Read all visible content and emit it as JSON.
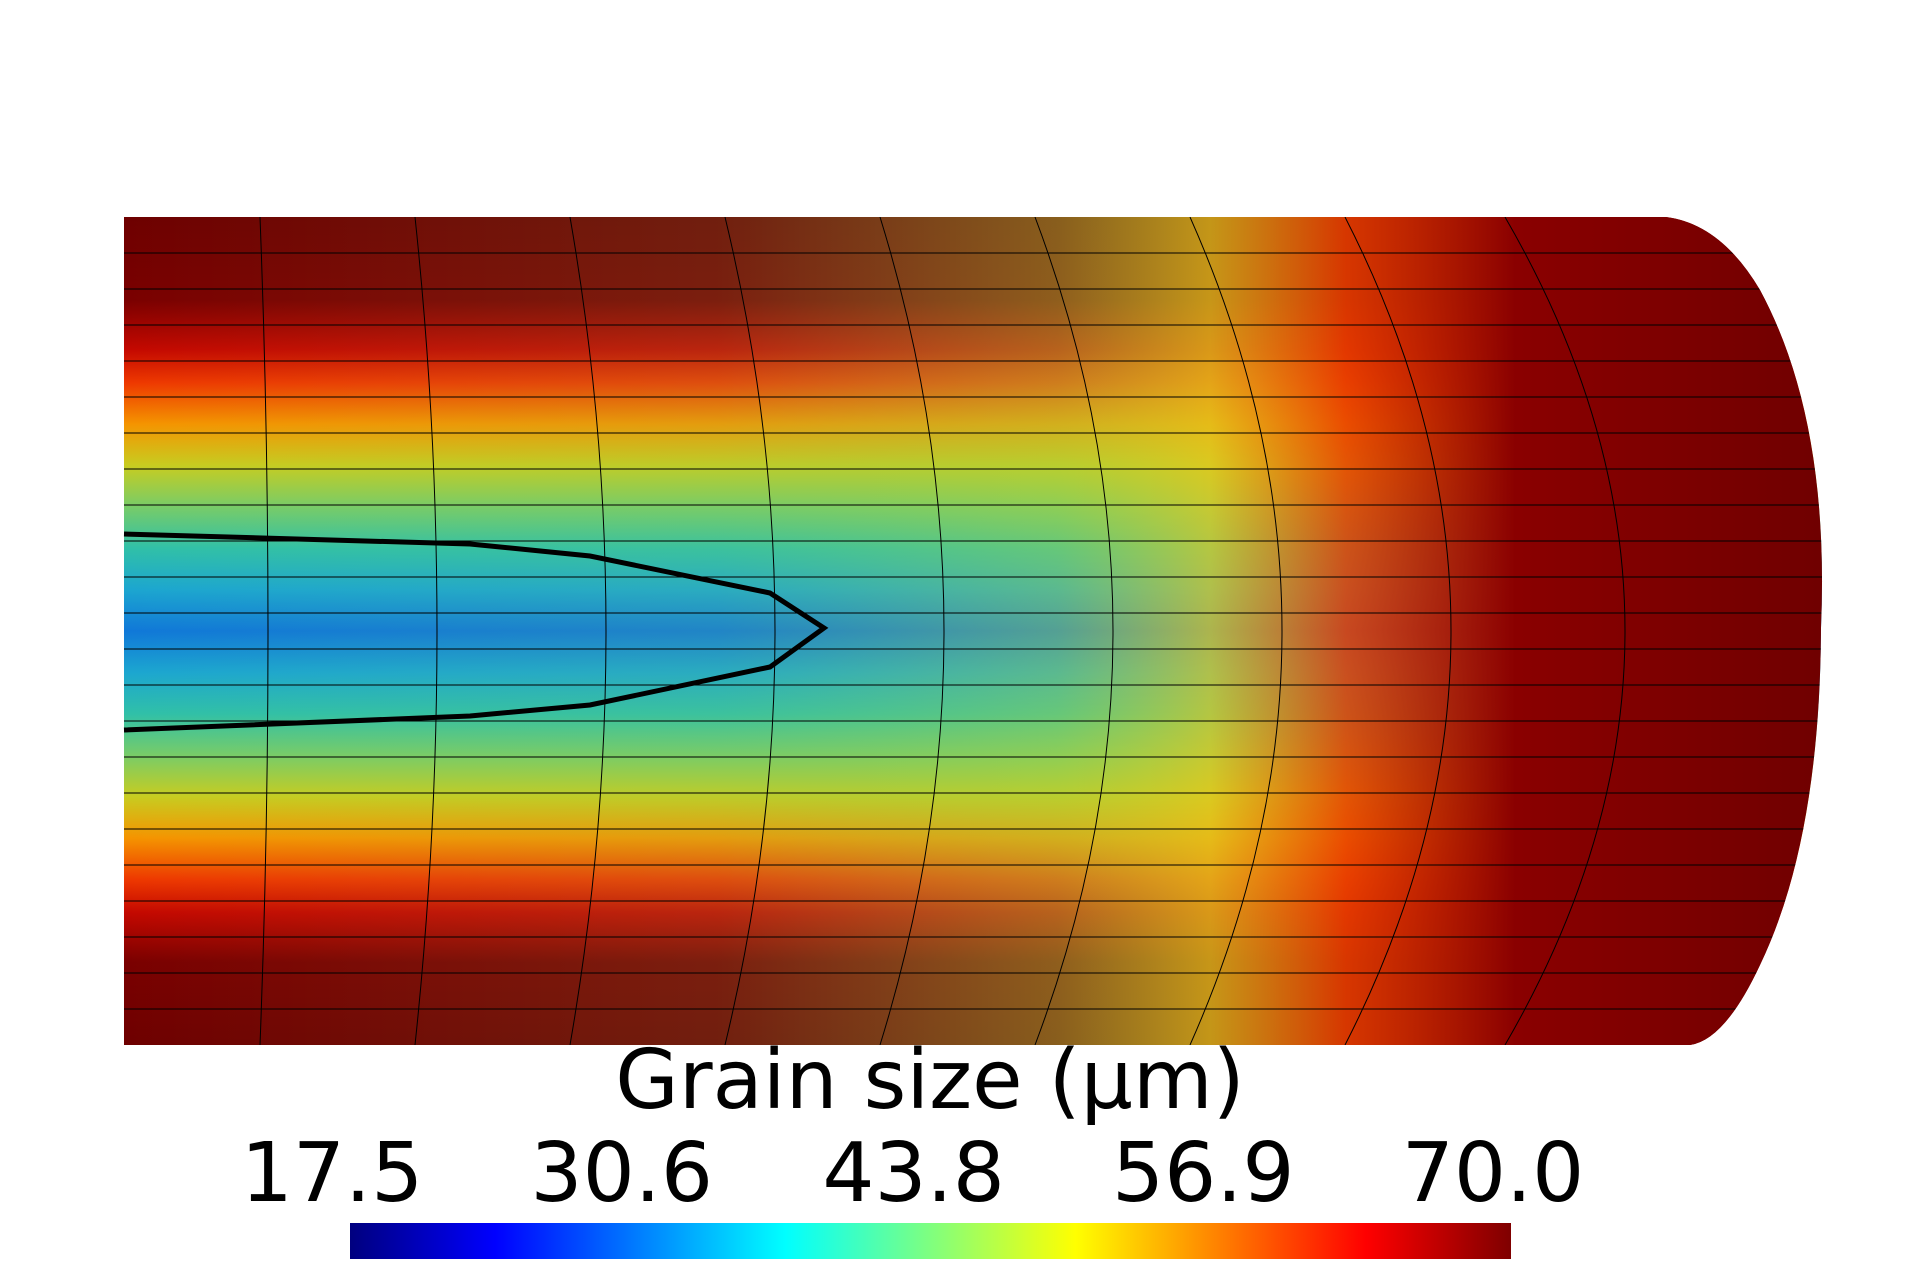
{
  "chart_data": {
    "type": "contour",
    "colorbar_title": "Grain size (μm)",
    "clim": [
      17.5,
      70
    ],
    "colorbar_ticks": [
      17.5,
      30.6,
      43.8,
      56.9,
      {
        "value": 70,
        "label": "70.0"
      }
    ],
    "colormap": [
      "#00007f",
      "#0000ff",
      "#007fff",
      "#00ffff",
      "#7fff7f",
      "#ffff00",
      "#ff7f00",
      "#ff0000",
      "#7f0000"
    ]
  }
}
